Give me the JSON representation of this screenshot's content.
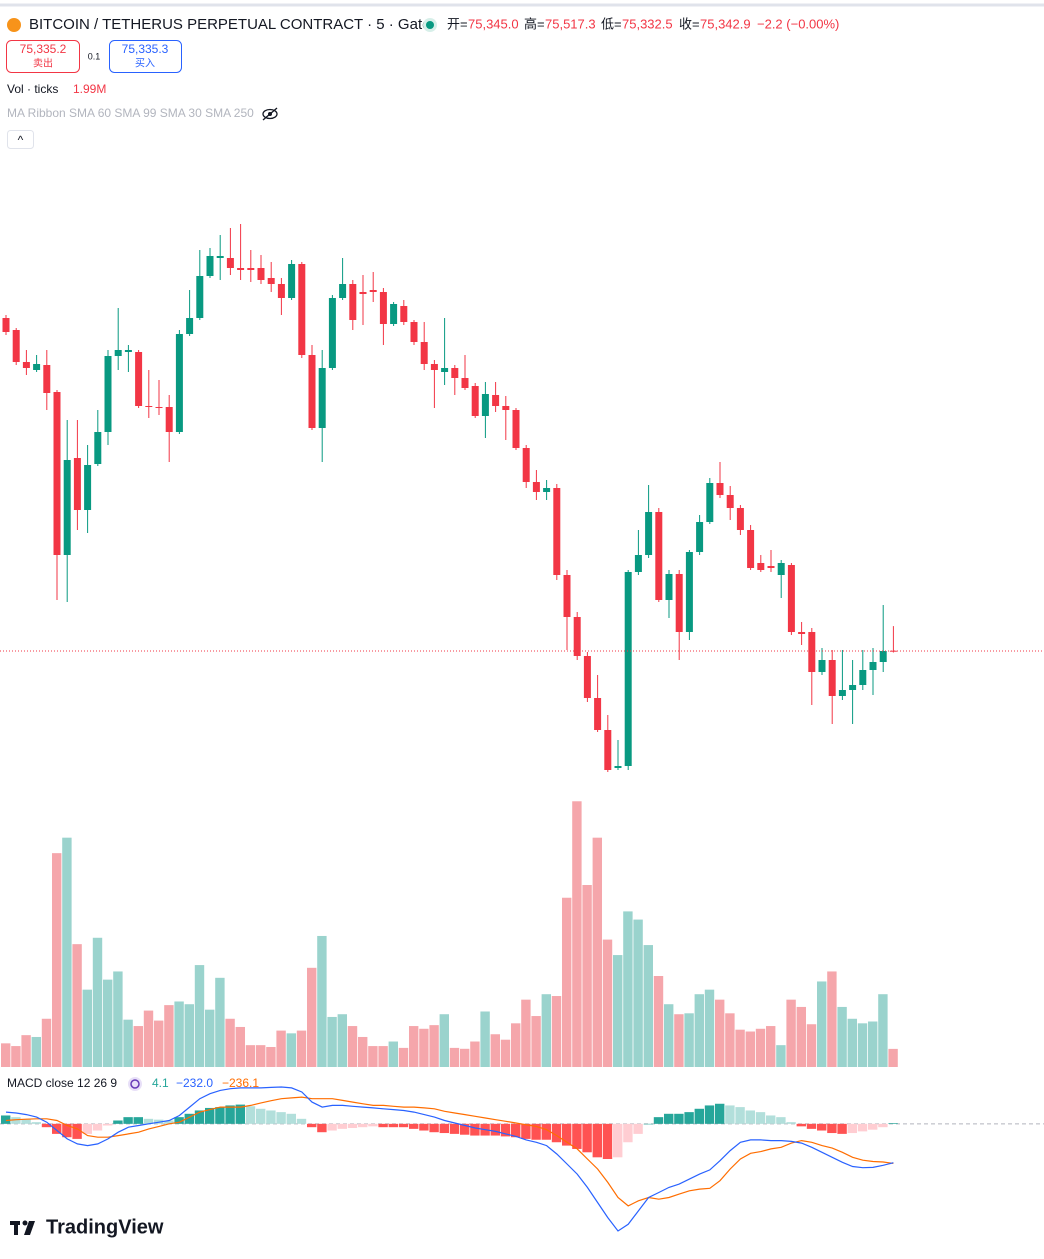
{
  "header": {
    "symbol": "BITCOIN / TETHERUS PERPETUAL CONTRACT · 5 · Gate",
    "open_label": "开=",
    "open": "75,345.0",
    "high_label": "高=",
    "high": "75,517.3",
    "low_label": "低=",
    "low": "75,332.5",
    "close_label": "收=",
    "close": "75,342.9",
    "change": "−2.2 (−0.00%)",
    "sell_price": "75,335.2",
    "sell_label": "卖出",
    "spread": "0.1",
    "buy_price": "75,335.3",
    "buy_label": "买入",
    "volume_label": "Vol · ticks",
    "volume_value": "1.99M",
    "ma_ribbon": "MA Ribbon SMA 60 SMA 99 SMA 30 SMA 250",
    "collapse": "^",
    "macd_label": "MACD close 12 26 9",
    "macd_values": [
      "4.1",
      "−232.0",
      "−236.1"
    ],
    "logo": "TradingView"
  },
  "chart_data": {
    "type": "candlestick",
    "colors": {
      "up": "#089981",
      "down": "#f23645",
      "volume_up": "#9ad3cd",
      "volume_down": "#f5a6ab",
      "hist_up_grow": "#26a69a",
      "hist_up_fall": "#b2dfdb",
      "hist_down_fall": "#ff5252",
      "hist_down_rise": "#ffcdd2",
      "macd": "#2962ff",
      "signal": "#ff6d00",
      "last_price": "#f23645"
    },
    "price_ylim": [
      74300,
      78850
    ],
    "candles": [
      [
        77674,
        77695,
        77555,
        77576
      ],
      [
        77590,
        77604,
        77345,
        77366
      ],
      [
        77366,
        77450,
        77275,
        77324
      ],
      [
        77310,
        77415,
        77296,
        77352
      ],
      [
        77345,
        77450,
        77030,
        77149
      ],
      [
        77156,
        77170,
        75700,
        76015
      ],
      [
        76015,
        76960,
        75686,
        76680
      ],
      [
        76694,
        76960,
        76190,
        76330
      ],
      [
        76330,
        76785,
        76169,
        76645
      ],
      [
        76652,
        77030,
        76638,
        76876
      ],
      [
        76876,
        77450,
        76785,
        77408
      ],
      [
        77408,
        77744,
        77310,
        77450
      ],
      [
        77436,
        77485,
        77296,
        77450
      ],
      [
        77436,
        77450,
        77044,
        77058
      ],
      [
        77058,
        77310,
        76974,
        77051
      ],
      [
        77051,
        77240,
        76995,
        77044
      ],
      [
        77051,
        77135,
        76666,
        76876
      ],
      [
        76876,
        77590,
        76862,
        77562
      ],
      [
        77562,
        77870,
        77548,
        77674
      ],
      [
        77674,
        78150,
        77660,
        77968
      ],
      [
        77968,
        78164,
        77954,
        78108
      ],
      [
        78094,
        78255,
        77940,
        78108
      ],
      [
        78094,
        78304,
        77975,
        78024
      ],
      [
        78024,
        78332,
        77940,
        78010
      ],
      [
        78024,
        78150,
        77926,
        78010
      ],
      [
        78024,
        78115,
        77912,
        77940
      ],
      [
        77954,
        78066,
        77856,
        77912
      ],
      [
        77912,
        77954,
        77695,
        77814
      ],
      [
        77814,
        78080,
        77800,
        78052
      ],
      [
        78052,
        78066,
        77394,
        77415
      ],
      [
        77415,
        77485,
        76890,
        76904
      ],
      [
        76904,
        77450,
        76666,
        77324
      ],
      [
        77324,
        77835,
        77310,
        77814
      ],
      [
        77814,
        78094,
        77800,
        77912
      ],
      [
        77912,
        77940,
        77590,
        77660
      ],
      [
        77856,
        77975,
        77625,
        77842
      ],
      [
        77870,
        77996,
        77786,
        77856
      ],
      [
        77856,
        77884,
        77485,
        77632
      ],
      [
        77632,
        77786,
        77618,
        77772
      ],
      [
        77758,
        77800,
        77625,
        77646
      ],
      [
        77646,
        77660,
        77485,
        77506
      ],
      [
        77506,
        77646,
        77310,
        77352
      ],
      [
        77352,
        77380,
        77044,
        77310
      ],
      [
        77296,
        77674,
        77205,
        77324
      ],
      [
        77324,
        77345,
        77135,
        77254
      ],
      [
        77254,
        77415,
        77170,
        77184
      ],
      [
        77198,
        77219,
        76974,
        76988
      ],
      [
        76988,
        77226,
        76834,
        77142
      ],
      [
        77135,
        77226,
        77016,
        77058
      ],
      [
        77058,
        77128,
        76820,
        77030
      ],
      [
        77030,
        77044,
        76750,
        76764
      ],
      [
        76764,
        76785,
        76484,
        76526
      ],
      [
        76526,
        76610,
        76400,
        76456
      ],
      [
        76456,
        76540,
        76400,
        76484
      ],
      [
        76484,
        76512,
        75840,
        75875
      ],
      [
        75875,
        75910,
        75350,
        75581
      ],
      [
        75581,
        75616,
        75280,
        75308
      ],
      [
        75308,
        75336,
        74986,
        75014
      ],
      [
        75014,
        75175,
        74776,
        74790
      ],
      [
        74790,
        74895,
        74496,
        74510
      ],
      [
        74524,
        74720,
        74510,
        74538
      ],
      [
        74538,
        75910,
        74510,
        75896
      ],
      [
        75896,
        76190,
        75875,
        76015
      ],
      [
        76015,
        76505,
        75994,
        76316
      ],
      [
        76316,
        76344,
        75686,
        75700
      ],
      [
        75700,
        75910,
        75574,
        75882
      ],
      [
        75882,
        75910,
        75280,
        75476
      ],
      [
        75476,
        76050,
        75420,
        76036
      ],
      [
        76036,
        76295,
        76015,
        76246
      ],
      [
        76246,
        76554,
        76232,
        76519
      ],
      [
        76519,
        76666,
        76414,
        76435
      ],
      [
        76435,
        76498,
        76260,
        76344
      ],
      [
        76344,
        76365,
        76155,
        76190
      ],
      [
        76190,
        76225,
        75910,
        75924
      ],
      [
        75959,
        76015,
        75896,
        75910
      ],
      [
        75938,
        76050,
        75896,
        75924
      ],
      [
        75875,
        75980,
        75714,
        75959
      ],
      [
        75945,
        75959,
        75455,
        75476
      ],
      [
        75476,
        75546,
        75385,
        75462
      ],
      [
        75476,
        75504,
        74965,
        75196
      ],
      [
        75196,
        75364,
        75175,
        75280
      ],
      [
        75280,
        75350,
        74832,
        75028
      ],
      [
        75028,
        75350,
        75000,
        75070
      ],
      [
        75070,
        75280,
        74832,
        75105
      ],
      [
        75105,
        75350,
        75070,
        75210
      ],
      [
        75210,
        75364,
        75035,
        75266
      ],
      [
        75266,
        75665,
        75196,
        75343
      ],
      [
        75345.0,
        75517.3,
        75332.5,
        75342.9
      ]
    ],
    "volume_ylim": [
      0,
      30
    ],
    "volume": [
      2.6,
      2.3,
      3.5,
      3.3,
      5.3,
      23.5,
      25.2,
      13.5,
      8.5,
      14.2,
      9.6,
      10.5,
      5.2,
      4.5,
      6.2,
      5.1,
      6.8,
      7.2,
      6.9,
      11.2,
      6.3,
      9.8,
      5.3,
      4.4,
      2.4,
      2.4,
      2.2,
      4.0,
      3.7,
      4.0,
      10.9,
      14.4,
      5.5,
      5.8,
      4.5,
      3.3,
      2.3,
      2.3,
      2.8,
      2.1,
      4.5,
      4.2,
      4.6,
      5.8,
      2.1,
      2.0,
      2.8,
      6.1,
      3.6,
      3.0,
      4.8,
      7.4,
      5.6,
      8.0,
      7.8,
      18.6,
      29.2,
      20.0,
      25.2,
      14.0,
      12.3,
      17.1,
      16.2,
      13.4,
      10.0,
      6.9,
      5.8,
      5.9,
      8.0,
      8.5,
      7.4,
      5.9,
      4.1,
      3.9,
      4.2,
      4.5,
      2.4,
      7.4,
      6.6,
      4.7,
      9.4,
      10.5,
      6.6,
      5.3,
      4.8,
      5.0,
      8.0,
      1.99
    ],
    "macd_ylim": [
      -700,
      250
    ],
    "histogram": [
      50,
      40,
      27,
      10,
      -20,
      -60,
      -80,
      -90,
      -60,
      -40,
      -10,
      20,
      40,
      40,
      30,
      25,
      20,
      40,
      60,
      80,
      95,
      100,
      110,
      115,
      105,
      90,
      80,
      70,
      60,
      30,
      -20,
      -50,
      -40,
      -30,
      -25,
      -20,
      -15,
      -20,
      -20,
      -20,
      -30,
      -40,
      -50,
      -55,
      -60,
      -65,
      -70,
      -70,
      -70,
      -75,
      -80,
      -90,
      -95,
      -95,
      -110,
      -130,
      -150,
      -170,
      -200,
      -210,
      -200,
      -110,
      -60,
      0,
      40,
      60,
      60,
      70,
      90,
      110,
      120,
      110,
      100,
      80,
      70,
      50,
      40,
      10,
      -15,
      -30,
      -40,
      -55,
      -60,
      -55,
      -45,
      -35,
      -20,
      4.1
    ],
    "macd": [
      70,
      65,
      55,
      40,
      10,
      -40,
      -90,
      -120,
      -130,
      -120,
      -90,
      -50,
      -20,
      -10,
      0,
      10,
      20,
      50,
      100,
      150,
      180,
      200,
      210,
      215,
      215,
      215,
      218,
      220,
      215,
      190,
      130,
      100,
      110,
      110,
      105,
      100,
      95,
      90,
      85,
      80,
      70,
      55,
      40,
      20,
      5,
      -10,
      -25,
      -35,
      -45,
      -60,
      -75,
      -96,
      -110,
      -130,
      -180,
      -240,
      -300,
      -380,
      -470,
      -560,
      -640,
      -600,
      -520,
      -440,
      -410,
      -380,
      -360,
      -330,
      -300,
      -275,
      -220,
      -160,
      -110,
      -96,
      -96,
      -100,
      -100,
      -105,
      -115,
      -140,
      -170,
      -200,
      -230,
      -255,
      -262,
      -260,
      -248,
      -232.0
    ],
    "signal": [
      20,
      25,
      28,
      30,
      30,
      20,
      -10,
      -30,
      -70,
      -80,
      -80,
      -70,
      -60,
      -50,
      -30,
      -15,
      0,
      10,
      40,
      70,
      85,
      100,
      100,
      100,
      110,
      125,
      138,
      150,
      155,
      160,
      150,
      150,
      150,
      140,
      130,
      120,
      110,
      110,
      105,
      100,
      100,
      95,
      90,
      75,
      65,
      55,
      45,
      35,
      25,
      15,
      5,
      -6,
      -15,
      -35,
      -70,
      -110,
      -150,
      -210,
      -270,
      -350,
      -440,
      -490,
      -460,
      -440,
      -450,
      -440,
      -420,
      -400,
      -390,
      -385,
      -340,
      -270,
      -210,
      -176,
      -166,
      -150,
      -140,
      -115,
      -100,
      -110,
      -130,
      -145,
      -170,
      -200,
      -217,
      -225,
      -228,
      -236.1
    ]
  }
}
